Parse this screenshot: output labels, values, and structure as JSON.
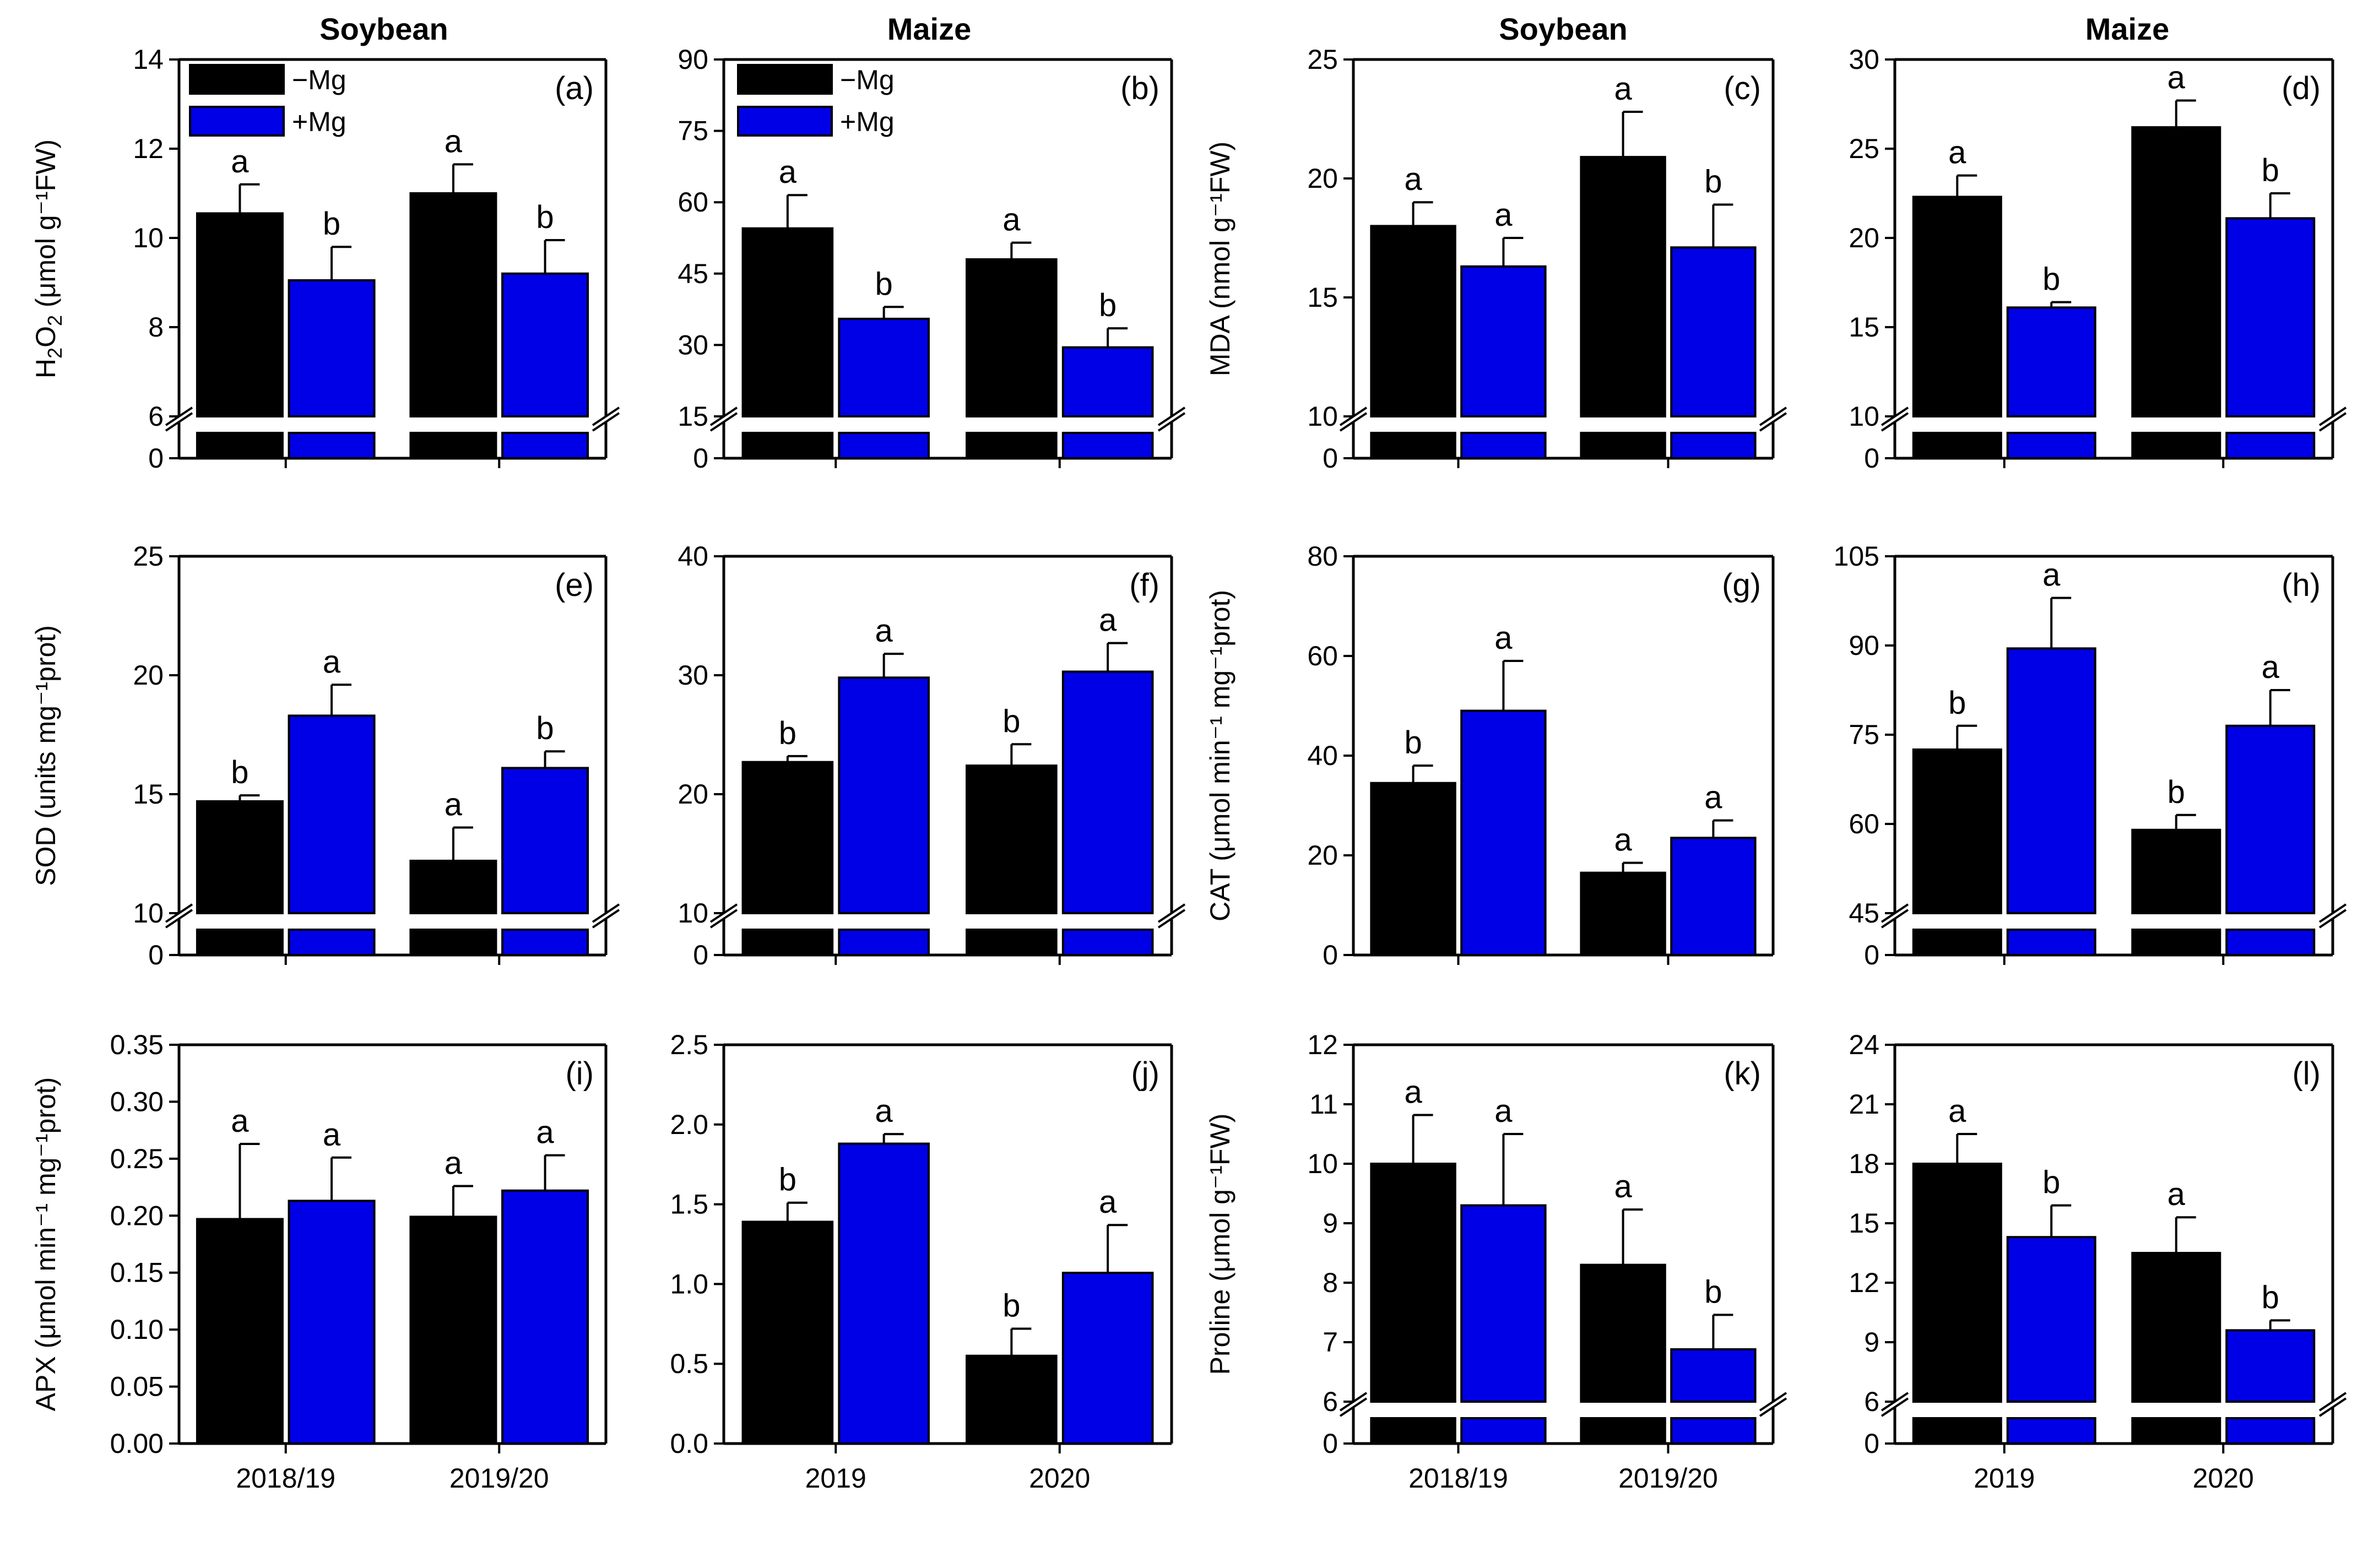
{
  "colors": {
    "minus_mg": "#000000",
    "plus_mg": "#0000e6"
  },
  "legend": [
    {
      "label": "−Mg",
      "color": "#000000"
    },
    {
      "label": "+Mg",
      "color": "#0000e6"
    }
  ],
  "column_titles": [
    "Soybean",
    "Maize",
    "Soybean",
    "Maize"
  ],
  "chart_data": [
    {
      "id": "a",
      "panel_label": "(a)",
      "type": "bar",
      "crop": "Soybean",
      "ylabel": "H2O2 (μmol g⁻¹FW)",
      "categories": [
        "2018/19",
        "2019/20"
      ],
      "ylim": [
        6,
        14
      ],
      "axis_break": true,
      "yticks": [
        "6",
        "8",
        "10",
        "12",
        "14"
      ],
      "series": [
        {
          "name": "−Mg",
          "values": [
            10.55,
            11.0
          ],
          "errors": [
            0.65,
            0.65
          ],
          "letters": [
            "a",
            "a"
          ]
        },
        {
          "name": "+Mg",
          "values": [
            9.05,
            9.2
          ],
          "errors": [
            0.75,
            0.75
          ],
          "letters": [
            "b",
            "b"
          ]
        }
      ]
    },
    {
      "id": "b",
      "panel_label": "(b)",
      "type": "bar",
      "crop": "Maize",
      "ylabel": "",
      "categories": [
        "2019",
        "2020"
      ],
      "ylim": [
        15,
        90
      ],
      "axis_break": true,
      "yticks": [
        "15",
        "30",
        "45",
        "60",
        "75",
        "90"
      ],
      "series": [
        {
          "name": "−Mg",
          "values": [
            54.5,
            48.0
          ],
          "errors": [
            7.0,
            3.5
          ],
          "letters": [
            "a",
            "a"
          ]
        },
        {
          "name": "+Mg",
          "values": [
            35.5,
            29.5
          ],
          "errors": [
            2.5,
            4.0
          ],
          "letters": [
            "b",
            "b"
          ]
        }
      ]
    },
    {
      "id": "c",
      "panel_label": "(c)",
      "type": "bar",
      "crop": "Soybean",
      "ylabel": "MDA (nmol g⁻¹FW)",
      "categories": [
        "2018/19",
        "2019/20"
      ],
      "ylim": [
        10,
        25
      ],
      "axis_break": true,
      "yticks": [
        "10",
        "15",
        "20",
        "25"
      ],
      "series": [
        {
          "name": "−Mg",
          "values": [
            18.0,
            20.9
          ],
          "errors": [
            1.0,
            1.9
          ],
          "letters": [
            "a",
            "a"
          ]
        },
        {
          "name": "+Mg",
          "values": [
            16.3,
            17.1
          ],
          "errors": [
            1.2,
            1.8
          ],
          "letters": [
            "a",
            "b"
          ]
        }
      ]
    },
    {
      "id": "d",
      "panel_label": "(d)",
      "type": "bar",
      "crop": "Maize",
      "ylabel": "",
      "categories": [
        "2019",
        "2020"
      ],
      "ylim": [
        10,
        30
      ],
      "axis_break": true,
      "yticks": [
        "10",
        "15",
        "20",
        "25",
        "30"
      ],
      "series": [
        {
          "name": "−Mg",
          "values": [
            22.3,
            26.2
          ],
          "errors": [
            1.2,
            1.5
          ],
          "letters": [
            "a",
            "a"
          ]
        },
        {
          "name": "+Mg",
          "values": [
            16.1,
            21.1
          ],
          "errors": [
            0.3,
            1.4
          ],
          "letters": [
            "b",
            "b"
          ]
        }
      ]
    },
    {
      "id": "e",
      "panel_label": "(e)",
      "type": "bar",
      "crop": "Soybean",
      "ylabel": "SOD (units mg⁻¹prot)",
      "categories": [
        "2018/19",
        "2019/20"
      ],
      "ylim": [
        10,
        25
      ],
      "axis_break": true,
      "yticks": [
        "10",
        "15",
        "20",
        "25"
      ],
      "series": [
        {
          "name": "−Mg",
          "values": [
            14.7,
            12.2
          ],
          "errors": [
            0.25,
            1.4
          ],
          "letters": [
            "b",
            "a"
          ]
        },
        {
          "name": "+Mg",
          "values": [
            18.3,
            16.1
          ],
          "errors": [
            1.3,
            0.7
          ],
          "letters": [
            "a",
            "b"
          ]
        }
      ]
    },
    {
      "id": "f",
      "panel_label": "(f)",
      "type": "bar",
      "crop": "Maize",
      "ylabel": "",
      "categories": [
        "2019",
        "2020"
      ],
      "ylim": [
        10,
        40
      ],
      "axis_break": true,
      "yticks": [
        "10",
        "20",
        "30",
        "40"
      ],
      "series": [
        {
          "name": "−Mg",
          "values": [
            22.7,
            22.4
          ],
          "errors": [
            0.5,
            1.8
          ],
          "letters": [
            "b",
            "b"
          ]
        },
        {
          "name": "+Mg",
          "values": [
            29.8,
            30.3
          ],
          "errors": [
            2.0,
            2.4
          ],
          "letters": [
            "a",
            "a"
          ]
        }
      ]
    },
    {
      "id": "g",
      "panel_label": "(g)",
      "type": "bar",
      "crop": "Soybean",
      "ylabel": "CAT (μmol min⁻¹ mg⁻¹prot)",
      "categories": [
        "2018/19",
        "2019/20"
      ],
      "ylim": [
        0,
        80
      ],
      "axis_break": false,
      "yticks": [
        "0",
        "20",
        "40",
        "60",
        "80"
      ],
      "series": [
        {
          "name": "−Mg",
          "values": [
            34.5,
            16.5
          ],
          "errors": [
            3.5,
            2.0
          ],
          "letters": [
            "b",
            "a"
          ]
        },
        {
          "name": "+Mg",
          "values": [
            49.0,
            23.5
          ],
          "errors": [
            10.0,
            3.5
          ],
          "letters": [
            "a",
            "a"
          ]
        }
      ]
    },
    {
      "id": "h",
      "panel_label": "(h)",
      "type": "bar",
      "crop": "Maize",
      "ylabel": "",
      "categories": [
        "2019",
        "2020"
      ],
      "ylim": [
        45,
        105
      ],
      "axis_break": true,
      "yticks": [
        "45",
        "60",
        "75",
        "90",
        "105"
      ],
      "series": [
        {
          "name": "−Mg",
          "values": [
            72.5,
            59.0
          ],
          "errors": [
            4.0,
            2.5
          ],
          "letters": [
            "b",
            "b"
          ]
        },
        {
          "name": "+Mg",
          "values": [
            89.5,
            76.5
          ],
          "errors": [
            8.5,
            6.0
          ],
          "letters": [
            "a",
            "a"
          ]
        }
      ]
    },
    {
      "id": "i",
      "panel_label": "(i)",
      "type": "bar",
      "crop": "Soybean",
      "ylabel": "APX (μmol min⁻¹ mg⁻¹prot)",
      "categories": [
        "2018/19",
        "2019/20"
      ],
      "ylim": [
        0,
        0.35
      ],
      "axis_break": false,
      "yticks": [
        "0.00",
        "0.05",
        "0.10",
        "0.15",
        "0.20",
        "0.25",
        "0.30",
        "0.35"
      ],
      "series": [
        {
          "name": "−Mg",
          "values": [
            0.197,
            0.199
          ],
          "errors": [
            0.066,
            0.027
          ],
          "letters": [
            "a",
            "a"
          ]
        },
        {
          "name": "+Mg",
          "values": [
            0.213,
            0.222
          ],
          "errors": [
            0.038,
            0.031
          ],
          "letters": [
            "a",
            "a"
          ]
        }
      ]
    },
    {
      "id": "j",
      "panel_label": "(j)",
      "type": "bar",
      "crop": "Maize",
      "ylabel": "",
      "categories": [
        "2019",
        "2020"
      ],
      "ylim": [
        0,
        2.5
      ],
      "axis_break": false,
      "yticks": [
        "0.0",
        "0.5",
        "1.0",
        "1.5",
        "2.0",
        "2.5"
      ],
      "series": [
        {
          "name": "−Mg",
          "values": [
            1.39,
            0.55
          ],
          "errors": [
            0.12,
            0.17
          ],
          "letters": [
            "b",
            "b"
          ]
        },
        {
          "name": "+Mg",
          "values": [
            1.88,
            1.07
          ],
          "errors": [
            0.06,
            0.3
          ],
          "letters": [
            "a",
            "a"
          ]
        }
      ]
    },
    {
      "id": "k",
      "panel_label": "(k)",
      "type": "bar",
      "crop": "Soybean",
      "ylabel": "Proline (μmol g⁻¹FW)",
      "categories": [
        "2018/19",
        "2019/20"
      ],
      "ylim": [
        6,
        12
      ],
      "axis_break": true,
      "yticks": [
        "6",
        "7",
        "8",
        "9",
        "10",
        "11",
        "12"
      ],
      "series": [
        {
          "name": "−Mg",
          "values": [
            10.0,
            8.3
          ],
          "errors": [
            0.82,
            0.93
          ],
          "letters": [
            "a",
            "a"
          ]
        },
        {
          "name": "+Mg",
          "values": [
            9.3,
            6.88
          ],
          "errors": [
            1.2,
            0.58
          ],
          "letters": [
            "a",
            "b"
          ]
        }
      ]
    },
    {
      "id": "l",
      "panel_label": "(l)",
      "type": "bar",
      "crop": "Maize",
      "ylabel": "",
      "categories": [
        "2019",
        "2020"
      ],
      "ylim": [
        6,
        24
      ],
      "axis_break": true,
      "yticks": [
        "6",
        "9",
        "12",
        "15",
        "18",
        "21",
        "24"
      ],
      "series": [
        {
          "name": "−Mg",
          "values": [
            18.0,
            13.5
          ],
          "errors": [
            1.5,
            1.8
          ],
          "letters": [
            "a",
            "a"
          ]
        },
        {
          "name": "+Mg",
          "values": [
            14.3,
            9.6
          ],
          "errors": [
            1.6,
            0.5
          ],
          "letters": [
            "b",
            "b"
          ]
        }
      ]
    }
  ]
}
